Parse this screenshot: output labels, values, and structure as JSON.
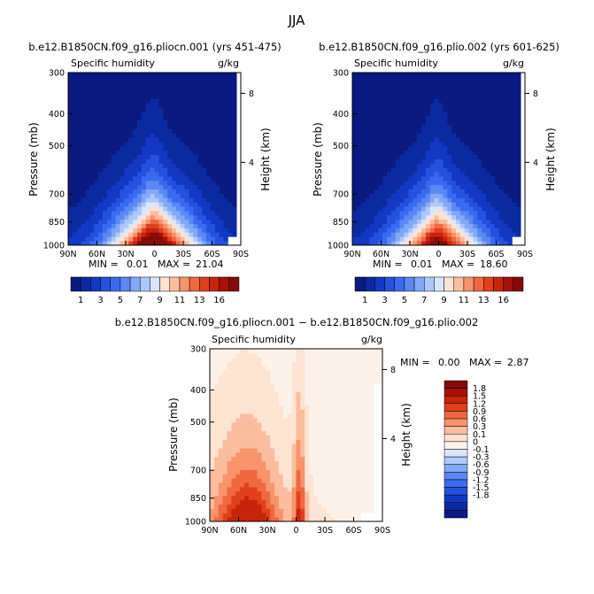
{
  "figure_title": "JJA",
  "shared": {
    "field_label": "Specific humidity",
    "units": "g/kg",
    "ylabel": "Pressure (mb)",
    "ylabel_right": "Height (km)",
    "x_ticks": [
      "90N",
      "60N",
      "30N",
      "0",
      "30S",
      "60S",
      "90S"
    ],
    "p_ticks": [
      "300",
      "400",
      "500",
      "700",
      "850",
      "1000"
    ],
    "height_ticks": [
      "8",
      "4"
    ]
  },
  "colors": {
    "abs": [
      "#0a1a80",
      "#0c2aa0",
      "#1238c4",
      "#2452de",
      "#3a6af0",
      "#5a88f4",
      "#82a8f6",
      "#afc8fa",
      "#dae6fc",
      "#fde3d2",
      "#fbbd9f",
      "#f7946c",
      "#f06840",
      "#e0401e",
      "#c8240c",
      "#a8100a",
      "#860a0c"
    ],
    "diff": [
      "#0a1a80",
      "#0c2aa0",
      "#1238c4",
      "#2452de",
      "#3a6af0",
      "#5a88f4",
      "#82a8f6",
      "#afc8fa",
      "#dae6fc",
      "#fdf2ea",
      "#fde3d2",
      "#fbbd9f",
      "#f7946c",
      "#f06840",
      "#e0401e",
      "#c8240c",
      "#a8100a",
      "#860a0c"
    ]
  },
  "chart_data": [
    {
      "type": "heatmap",
      "title": "b.e12.B1850CN.f09_g16.pliocn.001 (yrs 451-475)",
      "field": "Specific humidity",
      "units": "g/kg",
      "min_label": "MIN =",
      "min_value": "0.01",
      "max_label": "MAX =",
      "max_value": "21.04",
      "xlim": [
        "90N",
        "90S"
      ],
      "ylim": [
        1000,
        300
      ],
      "contour_levels": [
        "1",
        "2",
        "3",
        "4",
        "5",
        "6",
        "7",
        "8",
        "9",
        "10",
        "11",
        "12",
        "13",
        "14",
        "15",
        "16"
      ],
      "colorbar_labels": [
        "1",
        "3",
        "5",
        "7",
        "9",
        "11",
        "13",
        "16"
      ]
    },
    {
      "type": "heatmap",
      "title": "b.e12.B1850CN.f09_g16.plio.002 (yrs 601-625)",
      "field": "Specific humidity",
      "units": "g/kg",
      "min_label": "MIN =",
      "min_value": "0.01",
      "max_label": "MAX =",
      "max_value": "18.60",
      "xlim": [
        "90N",
        "90S"
      ],
      "ylim": [
        1000,
        300
      ],
      "contour_levels": [
        "1",
        "2",
        "3",
        "4",
        "5",
        "6",
        "7",
        "8",
        "9",
        "10",
        "11",
        "12",
        "13",
        "14",
        "15",
        "16"
      ],
      "colorbar_labels": [
        "1",
        "3",
        "5",
        "7",
        "9",
        "11",
        "13",
        "16"
      ]
    },
    {
      "type": "heatmap",
      "title": "b.e12.B1850CN.f09_g16.pliocn.001 − b.e12.B1850CN.f09_g16.plio.002",
      "field": "Specific humidity",
      "units": "g/kg",
      "min_label": "MIN =",
      "min_value": "0.00",
      "max_label": "MAX =",
      "max_value": "2.87",
      "xlim": [
        "90N",
        "90S"
      ],
      "ylim": [
        1000,
        300
      ],
      "contour_levels": [
        "-1.8",
        "-1.5",
        "-1.2",
        "-0.9",
        "-0.6",
        "-0.3",
        "-0.1",
        "0",
        "0.1",
        "0.3",
        "0.6",
        "0.9",
        "1.2",
        "1.5",
        "1.8"
      ],
      "colorbar_labels": [
        "1.8",
        "1.5",
        "1.2",
        "0.9",
        "0.6",
        "0.3",
        "0.1",
        "0",
        "-0.1",
        "-0.3",
        "-0.6",
        "-0.9",
        "-1.2",
        "-1.5",
        "-1.8"
      ]
    }
  ]
}
